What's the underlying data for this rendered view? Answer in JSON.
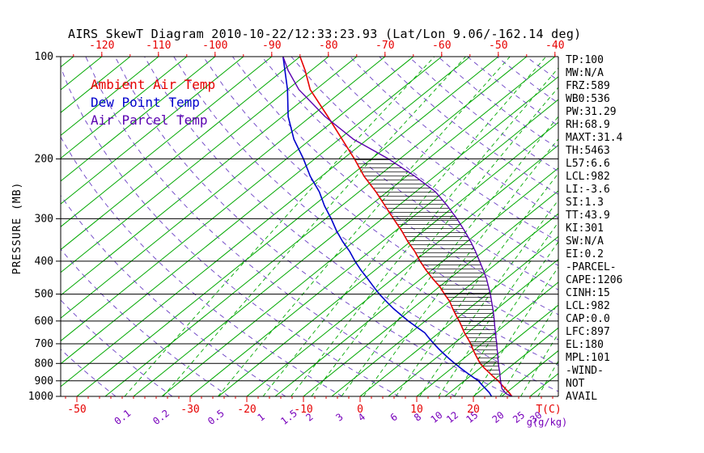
{
  "title": "AIRS SkewT Diagram 2010-10-22/12:33:23.93 (Lat/Lon 9.06/-162.14 deg)",
  "legend": [
    {
      "label": "Ambient Air Temp",
      "color": "#e60000"
    },
    {
      "label": "Dew Point Temp",
      "color": "#0000cc"
    },
    {
      "label": "Air Parcel Temp",
      "color": "#5a00b0"
    }
  ],
  "axes": {
    "pressure_label": "PRESSURE (MB)",
    "pressure_ticks": [
      100,
      200,
      300,
      400,
      500,
      600,
      700,
      800,
      900,
      1000
    ],
    "top_temp_ticks": [
      -120,
      -110,
      -100,
      -90,
      -80,
      -70,
      -60,
      -50,
      -40
    ],
    "bottom_temp_ticks": [
      -50,
      -30,
      -20,
      -10,
      0,
      10,
      20
    ],
    "bottom_temp_unit": "T(C)",
    "mixing_ratio_unit": "g(g/kg)"
  },
  "stats_panel": [
    "TP:100",
    "MW:N/A",
    "FRZ:589",
    "WB0:536",
    "PW:31.29",
    "RH:68.9",
    "MAXT:31.4",
    "TH:5463",
    "L57:6.6",
    "LCL:982",
    "LI:-3.6",
    "SI:1.3",
    "TT:43.9",
    "KI:301",
    "SW:N/A",
    "EI:0.2",
    "-PARCEL-",
    "CAPE:1206",
    "CINH:15",
    "LCL:982",
    "CAP:0.0",
    "LFC:897",
    "EL:180",
    "MPL:101",
    "-WIND-",
    "NOT",
    "AVAIL"
  ],
  "chart_data": {
    "type": "line",
    "title": "Skew-T log-P sounding",
    "x_axis_label": "T(C)",
    "y_axis_label": "PRESSURE (MB)",
    "y_scale": "log",
    "y_range_mb": [
      100,
      1000
    ],
    "x_top_range_c": [
      -120,
      -40
    ],
    "x_bottom_range_c": [
      -50,
      35
    ],
    "grid": {
      "isotherms_c": {
        "from": -125,
        "to": 45,
        "step": 5,
        "color": "#00a800"
      },
      "mixing_ratio_g_kg": [
        0.1,
        0.2,
        0.5,
        1,
        1.5,
        2,
        3,
        4,
        6,
        8,
        10,
        12,
        15,
        20,
        25,
        30
      ],
      "mixing_ratio_color": "#00a800",
      "dry_adiabats_theta_k": {
        "from": 220,
        "to": 460,
        "step": 10,
        "color": "#6a3fc4"
      },
      "cape_hatch_p_range_mb": [
        200,
        880
      ]
    },
    "series": [
      {
        "name": "Ambient Air Temp",
        "color": "#e60000",
        "points_p_t": [
          [
            100,
            -85
          ],
          [
            110,
            -81
          ],
          [
            125,
            -76
          ],
          [
            150,
            -67
          ],
          [
            175,
            -59.5
          ],
          [
            200,
            -53
          ],
          [
            225,
            -47.5
          ],
          [
            250,
            -42
          ],
          [
            275,
            -37.3
          ],
          [
            300,
            -33
          ],
          [
            325,
            -29
          ],
          [
            350,
            -25.5
          ],
          [
            375,
            -22
          ],
          [
            400,
            -19
          ],
          [
            425,
            -16
          ],
          [
            450,
            -13
          ],
          [
            475,
            -10
          ],
          [
            500,
            -7.5
          ],
          [
            525,
            -5
          ],
          [
            550,
            -3
          ],
          [
            575,
            -1
          ],
          [
            600,
            1
          ],
          [
            625,
            2.8
          ],
          [
            650,
            4.5
          ],
          [
            675,
            6.3
          ],
          [
            700,
            8
          ],
          [
            725,
            9.5
          ],
          [
            750,
            11
          ],
          [
            775,
            12.5
          ],
          [
            800,
            14
          ],
          [
            825,
            15.7
          ],
          [
            850,
            17.5
          ],
          [
            875,
            19.2
          ],
          [
            900,
            21
          ],
          [
            925,
            22.5
          ],
          [
            950,
            24
          ],
          [
            975,
            25.5
          ],
          [
            1000,
            26.8
          ]
        ]
      },
      {
        "name": "Dew Point Temp",
        "color": "#0000cc",
        "points_p_t": [
          [
            100,
            -88
          ],
          [
            125,
            -80
          ],
          [
            150,
            -74
          ],
          [
            175,
            -68
          ],
          [
            200,
            -62
          ],
          [
            225,
            -57
          ],
          [
            250,
            -52
          ],
          [
            275,
            -48
          ],
          [
            300,
            -44
          ],
          [
            325,
            -40.5
          ],
          [
            350,
            -37
          ],
          [
            375,
            -33.5
          ],
          [
            400,
            -30.5
          ],
          [
            425,
            -27.5
          ],
          [
            450,
            -24.5
          ],
          [
            475,
            -21.7
          ],
          [
            500,
            -19
          ],
          [
            525,
            -16.2
          ],
          [
            550,
            -13.5
          ],
          [
            575,
            -10.7
          ],
          [
            600,
            -8
          ],
          [
            625,
            -5.2
          ],
          [
            650,
            -2.5
          ],
          [
            675,
            -0.5
          ],
          [
            700,
            1.5
          ],
          [
            725,
            3.5
          ],
          [
            750,
            5.5
          ],
          [
            775,
            7.5
          ],
          [
            800,
            9.5
          ],
          [
            825,
            11.5
          ],
          [
            850,
            13.5
          ],
          [
            875,
            15.5
          ],
          [
            900,
            17.5
          ],
          [
            925,
            19
          ],
          [
            950,
            20.5
          ],
          [
            975,
            22
          ],
          [
            1000,
            23.2
          ]
        ]
      },
      {
        "name": "Air Parcel Temp",
        "color": "#5a00b0",
        "points_p_t": [
          [
            100,
            -88
          ],
          [
            110,
            -84
          ],
          [
            125,
            -78
          ],
          [
            150,
            -67.5
          ],
          [
            175,
            -57.5
          ],
          [
            190,
            -51
          ],
          [
            200,
            -47
          ],
          [
            225,
            -38.5
          ],
          [
            250,
            -31.5
          ],
          [
            275,
            -26.3
          ],
          [
            300,
            -21.8
          ],
          [
            325,
            -17.9
          ],
          [
            350,
            -14.4
          ],
          [
            375,
            -11.3
          ],
          [
            400,
            -8.5
          ],
          [
            425,
            -5.9
          ],
          [
            450,
            -3.5
          ],
          [
            475,
            -1.4
          ],
          [
            500,
            0.6
          ],
          [
            525,
            2.4
          ],
          [
            550,
            4.1
          ],
          [
            575,
            5.7
          ],
          [
            600,
            7.2
          ],
          [
            625,
            8.6
          ],
          [
            650,
            10
          ],
          [
            675,
            11.3
          ],
          [
            700,
            12.6
          ],
          [
            725,
            13.8
          ],
          [
            750,
            15
          ],
          [
            775,
            16.1
          ],
          [
            800,
            17.2
          ],
          [
            825,
            18.3
          ],
          [
            850,
            19.4
          ],
          [
            875,
            20.4
          ],
          [
            900,
            21.4
          ],
          [
            925,
            22.4
          ],
          [
            950,
            23.4
          ],
          [
            982,
            25.2
          ],
          [
            1000,
            26.8
          ]
        ]
      }
    ]
  }
}
